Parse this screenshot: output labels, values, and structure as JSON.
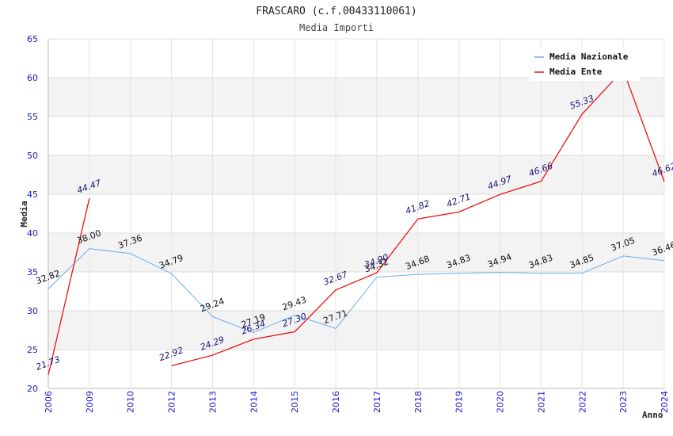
{
  "chart_data": {
    "type": "line",
    "title": "FRASCARO (c.f.00433110061)",
    "subtitle": "Media Importi",
    "xlabel": "Anno",
    "ylabel": "Media",
    "categories": [
      "2006",
      "2009",
      "2010",
      "2012",
      "2013",
      "2014",
      "2015",
      "2016",
      "2017",
      "2018",
      "2019",
      "2020",
      "2021",
      "2022",
      "2023",
      "2024"
    ],
    "ylim": [
      20,
      65
    ],
    "yticks": [
      20,
      25,
      30,
      35,
      40,
      45,
      50,
      55,
      60,
      65
    ],
    "grid": true,
    "legend_position": "top-right",
    "series": [
      {
        "name": "Media Nazionale",
        "color": "#6aaee8",
        "label_color": "#111111",
        "values": [
          32.82,
          38.0,
          37.36,
          34.79,
          29.24,
          27.19,
          29.43,
          27.71,
          34.32,
          34.68,
          34.83,
          34.94,
          34.83,
          34.85,
          37.05,
          36.46
        ],
        "labels": [
          "32.82",
          "38.00",
          "37.36",
          "34.79",
          "29.24",
          "27.19",
          "29.43",
          "27.71",
          "34.32",
          "34.68",
          "34.83",
          "34.94",
          "34.83",
          "34.85",
          "37.05",
          "36.46"
        ]
      },
      {
        "name": "Media Ente",
        "color": "#ee1111",
        "label_color": "#14147a",
        "values": [
          21.73,
          44.47,
          null,
          22.92,
          24.29,
          26.34,
          27.3,
          32.67,
          34.9,
          41.82,
          42.71,
          44.97,
          46.66,
          55.33,
          61.0,
          46.62
        ],
        "labels": [
          "21.73",
          "44.47",
          "",
          "22.92",
          "24.29",
          "26.34",
          "27.30",
          "32.67",
          "34.90",
          "41.82",
          "42.71",
          "44.97",
          "46.66",
          "55.33",
          "",
          "46.62"
        ]
      }
    ]
  }
}
